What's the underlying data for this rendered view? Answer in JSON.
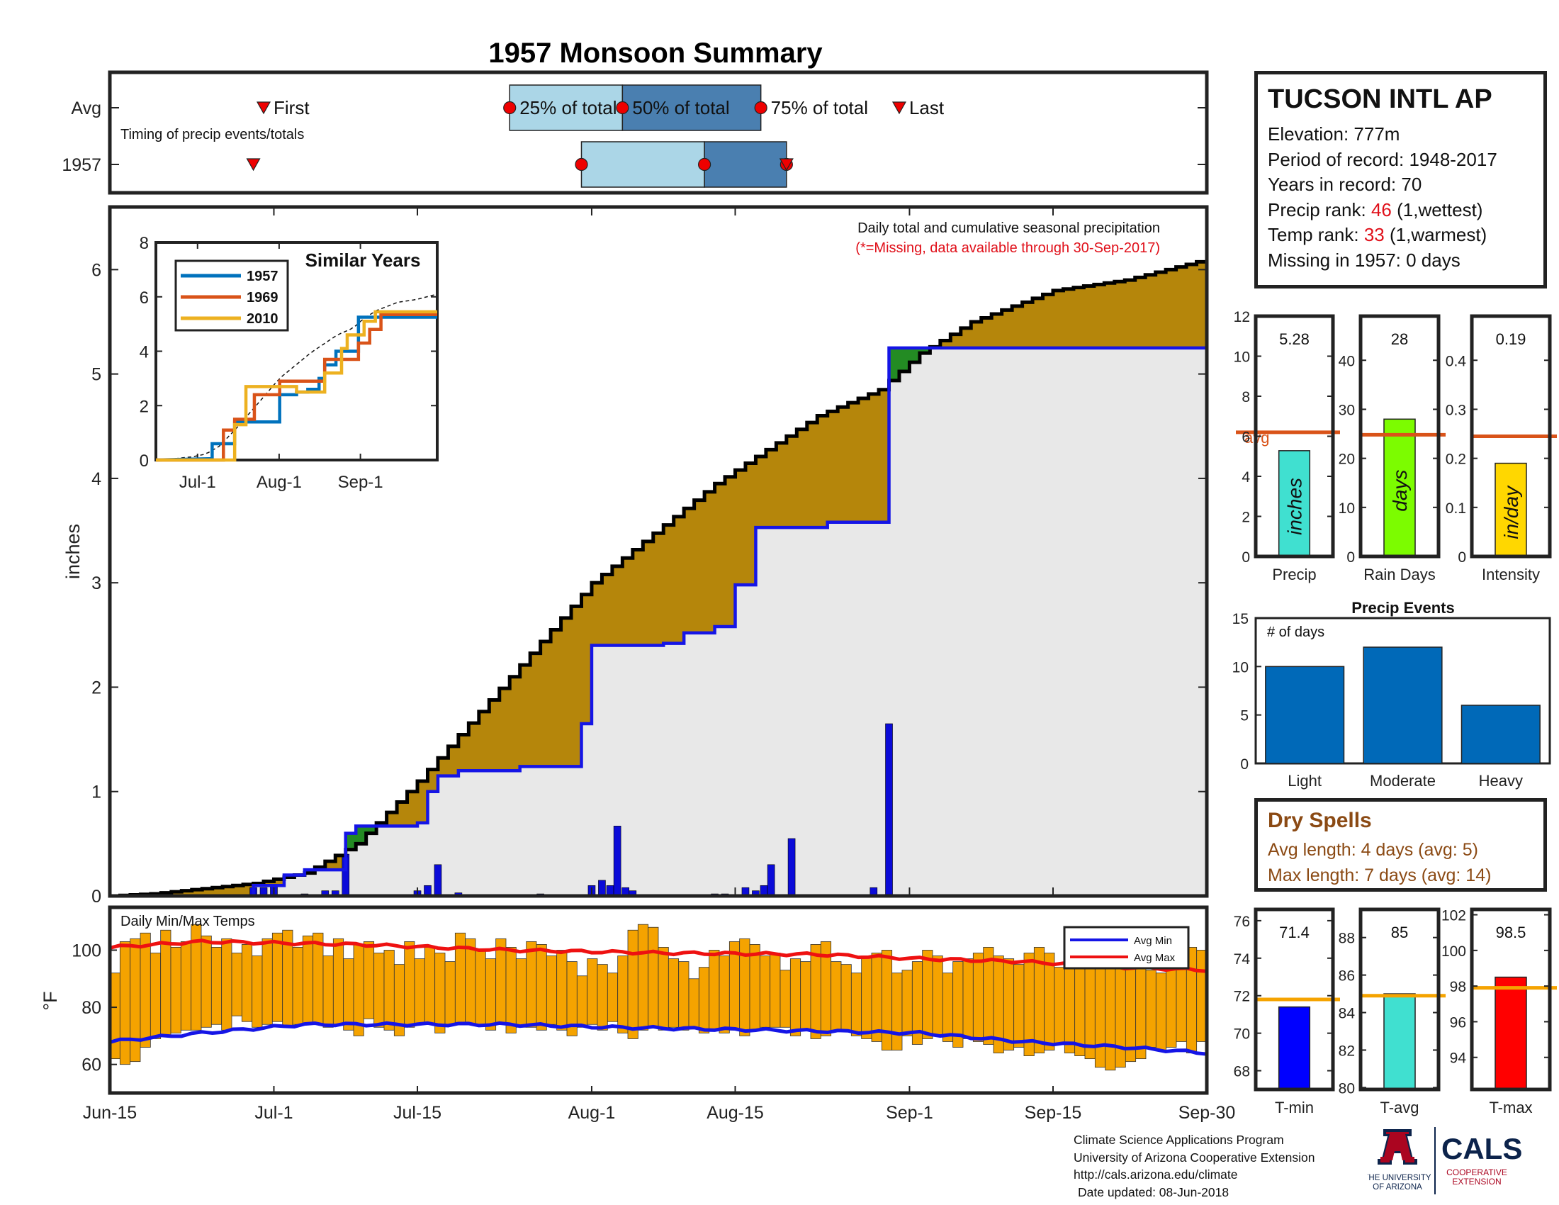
{
  "title": "1957 Monsoon Summary",
  "station": {
    "name": "TUCSON INTL AP",
    "elevation_label": "Elevation: ",
    "elevation": "777m",
    "period_label": "Period of record: ",
    "period": "1948-2017",
    "years_label": "Years in record: ",
    "years": "70",
    "precip_rank_label": "Precip rank: ",
    "precip_rank": "46",
    "precip_rank_note": " (1,wettest)",
    "temp_rank_label": "Temp rank: ",
    "temp_rank": "33",
    "temp_rank_note": " (1,warmest)",
    "missing_label": "Missing in 1957: ",
    "missing": "0 days"
  },
  "dry_spells": {
    "title": "Dry Spells",
    "avg_length": "Avg length: 4 days (avg: 5)",
    "max_length": "Max length: 7 days (avg: 14)"
  },
  "footer": {
    "line1": "Climate Science Applications Program",
    "line2": "University of Arizona Cooperative Extension",
    "line3": "http://cals.arizona.edu/climate",
    "line4": "Date updated: 08-Jun-2018"
  },
  "logos": {
    "ua_line1": "THE UNIVERSITY",
    "ua_line2": "OF ARIZONA",
    "cals": "CALS",
    "cals_line1": "COOPERATIVE",
    "cals_line2": "EXTENSION"
  },
  "colors": {
    "title_red": "#e0101a",
    "cum_brown": "#b5860b",
    "avg_fill": "#e8e8e8",
    "avg_line": "#1515e6",
    "daily_bar": "#0b0bd8",
    "above_avg_green": "#238b23",
    "temp_bar": "#f5a300",
    "avg_max_red": "#ee1111",
    "avg_min_blue": "#1515e6",
    "avg_bar_line": "#d95319",
    "temp_avg_line": "#f5a300",
    "event_bar": "#0069b8",
    "timing_light": "#abd6e7",
    "timing_dark": "#4a7fb0",
    "marker_red": "#ee0000"
  },
  "chart_data": [
    {
      "id": "timing",
      "type": "bar",
      "subtitle": "Timing of precip events/totals",
      "row_labels": [
        "Avg",
        "1957"
      ],
      "marker_labels": [
        "First",
        "25% of total",
        "50% of total",
        "75% of total",
        "Last"
      ],
      "avg": {
        "first": 181,
        "p25": 205,
        "p50": 216,
        "p75": 229.5,
        "last": 243
      },
      "year": {
        "first": 180,
        "p25": 212,
        "p50": 224,
        "p75": 232,
        "last": 232
      }
    },
    {
      "id": "cumulative",
      "type": "area",
      "caption": "Daily total and cumulative seasonal precipitation",
      "note": "(*=Missing, data available through 30-Sep-2017)",
      "ylabel": "inches",
      "ylim": [
        0,
        6.6
      ],
      "yticks": [
        0,
        1,
        2,
        3,
        4,
        5,
        6
      ],
      "xlim": [
        166,
        273
      ],
      "x_tick_days": [
        166,
        182,
        196,
        213,
        227,
        244,
        258,
        273
      ],
      "x_tick_labels": [
        "Jun-15",
        "Jul-1",
        "Jul-15",
        "Aug-1",
        "Aug-15",
        "Sep-1",
        "Sep-15",
        "Sep-30"
      ],
      "series": [
        {
          "name": "cumulative avg",
          "curve": [
            [
              166,
              0
            ],
            [
              170,
              0.02
            ],
            [
              180,
              0.12
            ],
            [
              185,
              0.22
            ],
            [
              190,
              0.5
            ],
            [
              196,
              1.1
            ],
            [
              205,
              2.1
            ],
            [
              213,
              3.0
            ],
            [
              225,
              3.95
            ],
            [
              235,
              4.6
            ],
            [
              241,
              4.85
            ],
            [
              245,
              5.2
            ],
            [
              250,
              5.5
            ],
            [
              258,
              5.8
            ],
            [
              265,
              5.9
            ],
            [
              273,
              6.1
            ]
          ]
        },
        {
          "name": "cumulative 1957",
          "steps": [
            [
              166,
              0
            ],
            [
              180,
              0
            ],
            [
              180,
              0.1
            ],
            [
              183,
              0.1
            ],
            [
              183,
              0.2
            ],
            [
              185,
              0.2
            ],
            [
              185,
              0.25
            ],
            [
              189,
              0.25
            ],
            [
              189,
              0.6
            ],
            [
              190,
              0.6
            ],
            [
              190,
              0.67
            ],
            [
              196,
              0.67
            ],
            [
              196,
              0.7
            ],
            [
              197,
              0.7
            ],
            [
              197,
              1.0
            ],
            [
              198,
              1.0
            ],
            [
              198,
              1.15
            ],
            [
              200,
              1.15
            ],
            [
              200,
              1.2
            ],
            [
              206,
              1.2
            ],
            [
              206,
              1.24
            ],
            [
              212,
              1.24
            ],
            [
              212,
              1.65
            ],
            [
              213,
              1.65
            ],
            [
              213,
              2.4
            ],
            [
              220,
              2.4
            ],
            [
              220,
              2.42
            ],
            [
              222,
              2.42
            ],
            [
              222,
              2.52
            ],
            [
              225,
              2.52
            ],
            [
              225,
              2.58
            ],
            [
              227,
              2.58
            ],
            [
              227,
              2.98
            ],
            [
              229,
              2.98
            ],
            [
              229,
              3.53
            ],
            [
              236,
              3.53
            ],
            [
              236,
              3.58
            ],
            [
              242,
              3.58
            ],
            [
              242,
              5.25
            ],
            [
              273,
              5.25
            ]
          ]
        }
      ],
      "daily": [
        [
          180,
          0.08
        ],
        [
          181,
          0.08
        ],
        [
          182,
          0.1
        ],
        [
          185,
          0.02
        ],
        [
          187,
          0.05
        ],
        [
          188,
          0.05
        ],
        [
          189,
          0.4
        ],
        [
          196,
          0.05
        ],
        [
          197,
          0.1
        ],
        [
          198,
          0.3
        ],
        [
          200,
          0.03
        ],
        [
          208,
          0.02
        ],
        [
          213,
          0.1
        ],
        [
          214,
          0.15
        ],
        [
          214.8,
          0.1
        ],
        [
          215.5,
          0.67
        ],
        [
          216.3,
          0.08
        ],
        [
          217,
          0.05
        ],
        [
          225,
          0.02
        ],
        [
          226,
          0.02
        ],
        [
          228,
          0.08
        ],
        [
          229,
          0.05
        ],
        [
          229.8,
          0.1
        ],
        [
          230.5,
          0.3
        ],
        [
          232.5,
          0.55
        ],
        [
          240.5,
          0.08
        ],
        [
          242,
          1.65
        ]
      ]
    },
    {
      "id": "similar_years",
      "type": "line",
      "title": "Similar Years",
      "ylim": [
        0,
        8
      ],
      "yticks": [
        0,
        2,
        4,
        6,
        8
      ],
      "x_tick_labels": [
        "Jul-1",
        "Aug-1",
        "Sep-1"
      ],
      "series": [
        {
          "name": "1957",
          "color": "#0072bd"
        },
        {
          "name": "1969",
          "color": "#d95319"
        },
        {
          "name": "2010",
          "color": "#edb120"
        }
      ]
    },
    {
      "id": "temps",
      "type": "bar",
      "title": "Daily Min/Max Temps",
      "ylabel": "°F",
      "ylim": [
        50,
        115
      ],
      "yticks": [
        60,
        80,
        100
      ],
      "legend": [
        "Avg Min",
        "Avg Max"
      ],
      "legend_position": "top-right",
      "avg_max_curve": [
        [
          166,
          101
        ],
        [
          175,
          103
        ],
        [
          190,
          102
        ],
        [
          205,
          100
        ],
        [
          220,
          99
        ],
        [
          235,
          98.5
        ],
        [
          245,
          97
        ],
        [
          255,
          96
        ],
        [
          265,
          94
        ],
        [
          273,
          93
        ]
      ],
      "avg_min_curve": [
        [
          166,
          68
        ],
        [
          175,
          71
        ],
        [
          185,
          74
        ],
        [
          195,
          74
        ],
        [
          205,
          74
        ],
        [
          215,
          73
        ],
        [
          230,
          72
        ],
        [
          245,
          71
        ],
        [
          255,
          68
        ],
        [
          265,
          66
        ],
        [
          273,
          64
        ]
      ],
      "max_temps": [
        92,
        103,
        104,
        106,
        99,
        107,
        101,
        103,
        109,
        105,
        101,
        104,
        99,
        102,
        98,
        104,
        106,
        107,
        101,
        105,
        106,
        98,
        104,
        97,
        102,
        103,
        99,
        100,
        95,
        103,
        97,
        101,
        99,
        96,
        106,
        104,
        100,
        97,
        104,
        101,
        97,
        103,
        102,
        98,
        100,
        96,
        91,
        97,
        95,
        92,
        98,
        107,
        109,
        108,
        101,
        97,
        96,
        90,
        94,
        100,
        98,
        103,
        104,
        102,
        98,
        99,
        93,
        97,
        96,
        102,
        103,
        96,
        95,
        92,
        98,
        99,
        100,
        92,
        93,
        96,
        100,
        98,
        92,
        96,
        97,
        99,
        101,
        98,
        97,
        95,
        99,
        101,
        99,
        94,
        96,
        100,
        98,
        97,
        95,
        99,
        100,
        96,
        93,
        92,
        98,
        99,
        101,
        100
      ],
      "min_temps": [
        62,
        60,
        61,
        66,
        69,
        70,
        71,
        72,
        72,
        73,
        74,
        72,
        77,
        75,
        73,
        74,
        75,
        73,
        74,
        74,
        74,
        73,
        74,
        72,
        70,
        76,
        73,
        72,
        70,
        73,
        74,
        74,
        71,
        74,
        74,
        74,
        74,
        72,
        74,
        71,
        73,
        73,
        72,
        74,
        72,
        70,
        73,
        74,
        72,
        75,
        71,
        69,
        72,
        73,
        72,
        73,
        72,
        73,
        71,
        72,
        71,
        72,
        70,
        72,
        73,
        73,
        73,
        70,
        72,
        69,
        70,
        72,
        72,
        70,
        69,
        68,
        65,
        65,
        70,
        67,
        69,
        70,
        68,
        66,
        69,
        68,
        67,
        64,
        65,
        66,
        63,
        64,
        65,
        67,
        64,
        63,
        62,
        59,
        58,
        59,
        61,
        62,
        66,
        65,
        66,
        68,
        64,
        68
      ]
    },
    {
      "id": "precip_bar",
      "type": "bar",
      "label": "Precip",
      "value": 5.28,
      "value_label": "5.28",
      "avg": 6.2,
      "unit": "inches",
      "avg_label": "avg",
      "ylim": [
        0,
        12
      ],
      "yticks": [
        0,
        2,
        4,
        6,
        8,
        10,
        12
      ],
      "color": "#40e0d0"
    },
    {
      "id": "rain_days_bar",
      "type": "bar",
      "label": "Rain Days",
      "value": 28,
      "value_label": "28",
      "avg": 24.8,
      "unit": "days",
      "ylim": [
        0,
        49
      ],
      "yticks": [
        0,
        10,
        20,
        30,
        40
      ],
      "color": "#7cfc00"
    },
    {
      "id": "intensity_bar",
      "type": "bar",
      "label": "Intensity",
      "value": 0.19,
      "value_label": "0.19",
      "avg": 0.245,
      "unit": "in/day",
      "ylim": [
        0,
        0.49
      ],
      "yticks": [
        0,
        0.1,
        0.2,
        0.3,
        0.4
      ],
      "ytick_labels": [
        "0",
        "0.1",
        "0.2",
        "0.3",
        "0.4"
      ],
      "color": "#ffd700"
    },
    {
      "id": "precip_events",
      "type": "bar",
      "title": "Precip Events",
      "ylabel": "# of days",
      "categories": [
        "Light",
        "Moderate",
        "Heavy"
      ],
      "values": [
        10,
        12,
        6
      ],
      "ylim": [
        0,
        15
      ],
      "yticks": [
        0,
        5,
        10,
        15
      ]
    },
    {
      "id": "tmin_bar",
      "type": "bar",
      "label": "T-min",
      "value": 71.4,
      "value_label": "71.4",
      "avg": 71.8,
      "ylim": [
        67,
        76.6
      ],
      "yticks": [
        68,
        70,
        72,
        74,
        76
      ],
      "color": "#0000ff"
    },
    {
      "id": "tavg_bar",
      "type": "bar",
      "label": "T-avg",
      "value": 85,
      "value_label": "85",
      "avg": 84.9,
      "ylim": [
        79.9,
        89.5
      ],
      "yticks": [
        80,
        82,
        84,
        86,
        88
      ],
      "color": "#40e0d0"
    },
    {
      "id": "tmax_bar",
      "type": "bar",
      "label": "T-max",
      "value": 98.5,
      "value_label": "98.5",
      "avg": 97.9,
      "ylim": [
        92.2,
        102.3
      ],
      "yticks": [
        94,
        96,
        98,
        100,
        102
      ],
      "color": "#ff0000"
    }
  ]
}
